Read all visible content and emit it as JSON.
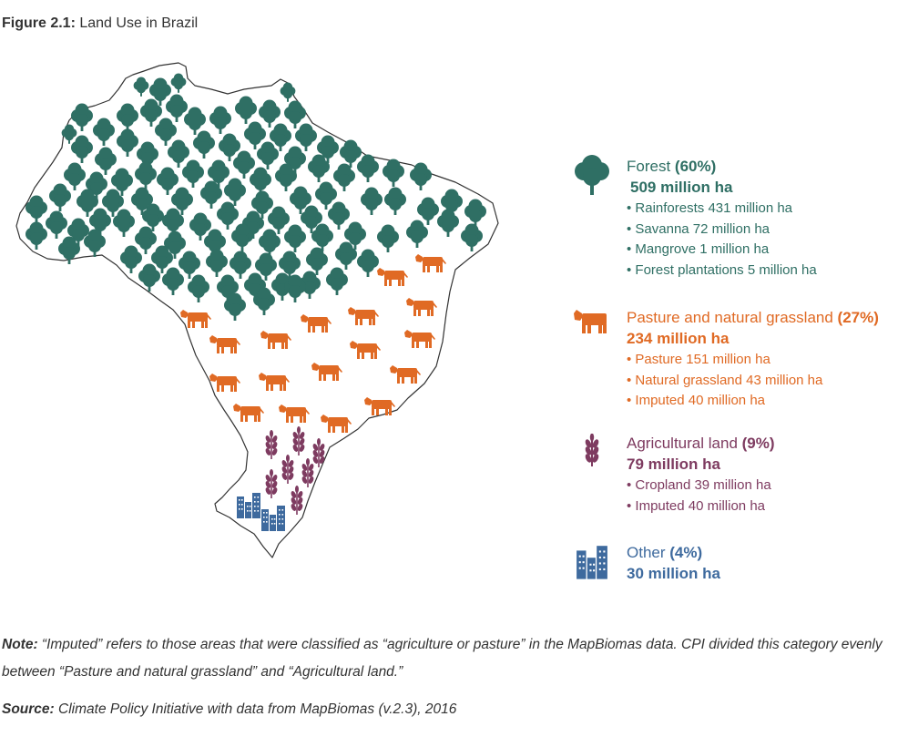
{
  "figure": {
    "label": "Figure 2.1:",
    "title": "Land Use in Brazil"
  },
  "colors": {
    "forest": "#2f6f64",
    "pasture": "#e06a24",
    "agriculture": "#7e3b60",
    "other": "#3e6a9e"
  },
  "legend": {
    "forest": {
      "icon": "tree-icon",
      "name": "Forest",
      "pct": "(60%)",
      "total": "509 million ha",
      "items": [
        "• Rainforests 431 million ha",
        "• Savanna 72 million ha",
        "• Mangrove 1 million ha",
        "• Forest plantations 5 million ha"
      ]
    },
    "pasture": {
      "icon": "cow-icon",
      "name": "Pasture and natural grassland",
      "pct": "(27%)",
      "total": "234 million ha",
      "items": [
        "• Pasture 151 million ha",
        "• Natural grassland 43 million ha",
        "• Imputed 40 million ha"
      ]
    },
    "agriculture": {
      "icon": "wheat-icon",
      "name": "Agricultural land",
      "pct": "(9%)",
      "total": "79 million ha",
      "items": [
        "• Cropland 39 million ha",
        "• Imputed 40 million ha"
      ]
    },
    "other": {
      "icon": "buildings-icon",
      "name": "Other",
      "pct": "(4%)",
      "total": "30 million ha"
    }
  },
  "note": {
    "label": "Note:",
    "text": " “Imputed” refers to those areas that were classified as “agriculture or pasture” in the MapBiomas data. CPI divided this category evenly between “Pasture and natural grassland” and “Agricultural land.”"
  },
  "source": {
    "label": "Source:",
    "text": " Climate Policy Initiative with data from MapBiomas (v.2.3), 2016"
  }
}
